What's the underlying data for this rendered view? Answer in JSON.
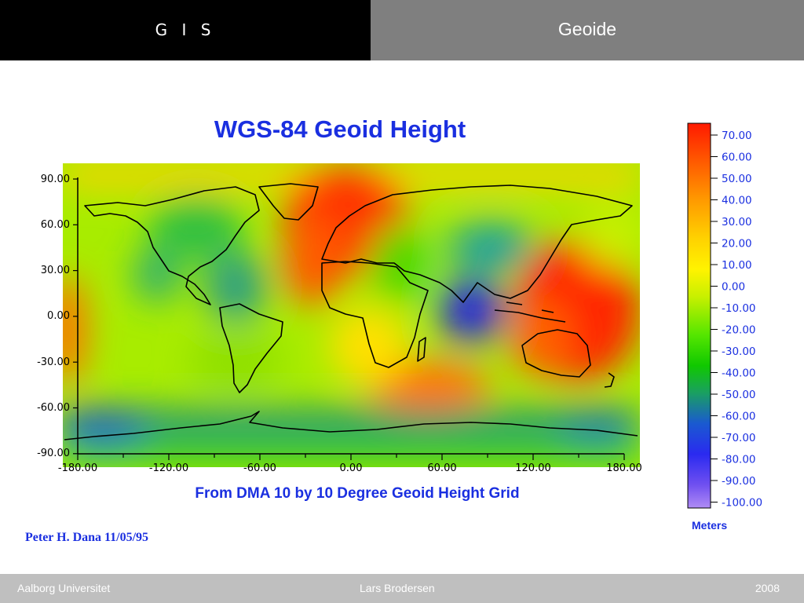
{
  "header": {
    "section": "G I S",
    "title": "Geoide"
  },
  "figure": {
    "title": "WGS-84 Geoid Height",
    "subtitle": "From DMA 10 by 10 Degree Geoid Height Grid",
    "credit": "Peter H. Dana 11/05/95",
    "y_ticks": [
      "90.00",
      "60.00",
      "30.00",
      "0.00",
      "-30.00",
      "-60.00",
      "-90.00"
    ],
    "x_ticks": [
      "-180.00",
      "-120.00",
      "-60.00",
      "0.00",
      "60.00",
      "120.00",
      "180.00"
    ],
    "colorbar": {
      "ticks": [
        "70.00",
        "60.00",
        "50.00",
        "40.00",
        "30.00",
        "20.00",
        "10.00",
        "0.00",
        "-10.00",
        "-20.00",
        "-30.00",
        "-40.00",
        "-50.00",
        "-60.00",
        "-70.00",
        "-80.00",
        "-90.00",
        "-100.00"
      ],
      "unit": "Meters",
      "colors": [
        "#ff1a00",
        "#ff5a00",
        "#ff9a00",
        "#ffd200",
        "#fff300",
        "#c8f000",
        "#55e600",
        "#10c800",
        "#1aa060",
        "#0a3cd2",
        "#3c1cf0",
        "#9a6cf0"
      ]
    },
    "colors": {
      "title_text": "#1a2fe0",
      "axis_text": "#000000"
    }
  },
  "footer": {
    "left": "Aalborg Universitet",
    "center": "Lars Brodersen",
    "right": "2008"
  }
}
